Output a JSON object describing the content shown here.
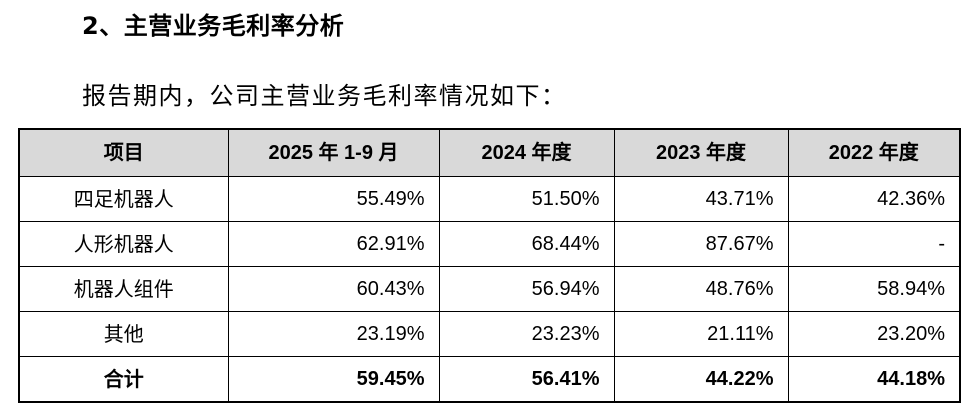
{
  "heading": "2、主营业务毛利率分析",
  "intro": "报告期内，公司主营业务毛利率情况如下：",
  "table": {
    "headers": [
      "项目",
      "2025 年 1-9 月",
      "2024 年度",
      "2023 年度",
      "2022 年度"
    ],
    "rows": [
      {
        "label": "四足机器人",
        "values": [
          "55.49%",
          "51.50%",
          "43.71%",
          "42.36%"
        ]
      },
      {
        "label": "人形机器人",
        "values": [
          "62.91%",
          "68.44%",
          "87.67%",
          "-"
        ]
      },
      {
        "label": "机器人组件",
        "values": [
          "60.43%",
          "56.94%",
          "48.76%",
          "58.94%"
        ]
      },
      {
        "label": "其他",
        "values": [
          "23.19%",
          "23.23%",
          "21.11%",
          "23.20%"
        ]
      }
    ],
    "total": {
      "label": "合计",
      "values": [
        "59.45%",
        "56.41%",
        "44.22%",
        "44.18%"
      ]
    }
  }
}
